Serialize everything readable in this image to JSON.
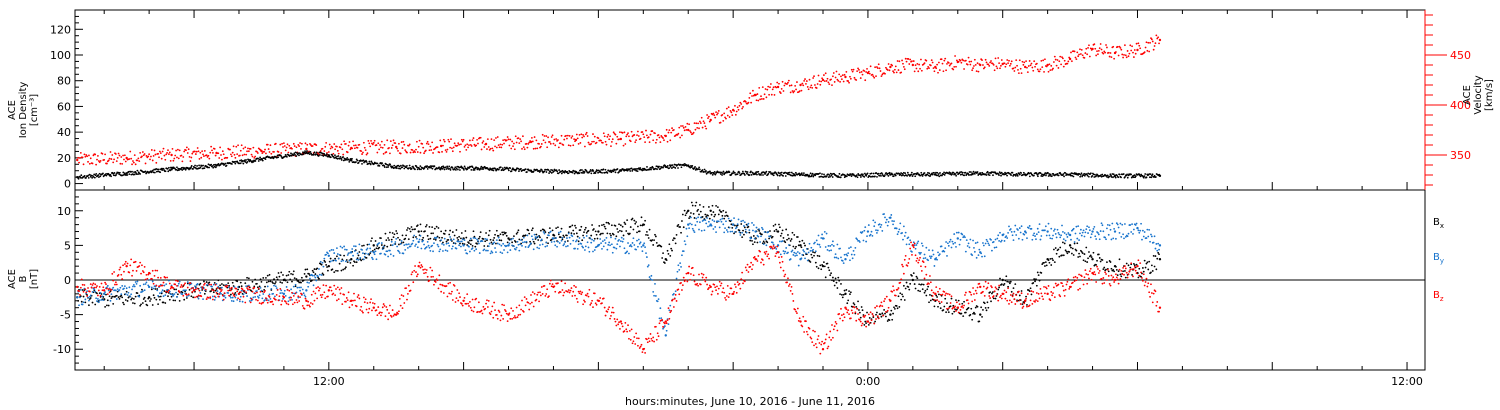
{
  "chart_data": [
    {
      "type": "scatter",
      "xlabel": "hours:minutes, June 10, 2016 - June 11, 2016",
      "x_ticks": [
        {
          "hour": 12,
          "label": "12:00"
        },
        {
          "hour": 24,
          "label": "0:00"
        },
        {
          "hour": 36,
          "label": "12:00"
        }
      ],
      "xlim": [
        6.35,
        36.4
      ],
      "panel_density": {
        "left_axis": {
          "label_lines": [
            "ACE",
            "Ion Density",
            "[cm⁻³]"
          ],
          "ylim": [
            -5,
            135
          ],
          "ticks": [
            0,
            20,
            40,
            60,
            80,
            100,
            120
          ]
        },
        "right_axis": {
          "label_lines": [
            "ACE",
            "Velocity",
            "[km/s]"
          ],
          "ylim": [
            315,
            495
          ],
          "ticks": [
            350,
            400,
            450
          ]
        },
        "series": [
          {
            "role": "density",
            "color": "#000000",
            "axis": "left",
            "x": [
              6.4,
              7.5,
              8.5,
              9.5,
              10.5,
              11.5,
              12.0,
              12.5,
              13.5,
              14.5,
              15.5,
              16.5,
              17.5,
              18.5,
              19.5,
              20.0,
              20.5,
              21.5,
              22.5,
              23.5,
              24.5,
              25.5,
              26.5,
              27.5,
              28.5,
              29.5,
              30.5
            ],
            "y": [
              5,
              8,
              11,
              14,
              19,
              24,
              22,
              18,
              13,
              12,
              12,
              10,
              9,
              10,
              13,
              14,
              8,
              8,
              7,
              6,
              7,
              7,
              8,
              7,
              7,
              6,
              6
            ]
          },
          {
            "role": "velocity",
            "color": "#ff0000",
            "axis": "right",
            "x": [
              6.4,
              7.5,
              8.5,
              9.5,
              10.5,
              11.5,
              12.5,
              13.5,
              14.5,
              15.5,
              16.5,
              17.5,
              18.5,
              19.5,
              20.0,
              20.5,
              21.0,
              21.5,
              22.0,
              22.5,
              23.0,
              23.5,
              24.0,
              24.5,
              25.0,
              25.5,
              26.0,
              26.5,
              27.0,
              27.5,
              28.0,
              28.5,
              29.0,
              29.5,
              30.0,
              30.5
            ],
            "y": [
              345,
              347,
              350,
              352,
              354,
              356,
              357,
              358,
              359,
              361,
              363,
              365,
              366,
              369,
              375,
              385,
              395,
              410,
              418,
              420,
              425,
              428,
              432,
              438,
              440,
              438,
              443,
              440,
              441,
              438,
              440,
              446,
              456,
              452,
              455,
              465
            ]
          }
        ]
      },
      "panel_field": {
        "left_axis": {
          "label_lines": [
            "ACE",
            "B",
            "[nT]"
          ],
          "ylim": [
            -13,
            13
          ],
          "ticks": [
            -10,
            -5,
            0,
            5,
            10
          ]
        },
        "legend": [
          {
            "label": "B",
            "sub": "x",
            "color": "#000000"
          },
          {
            "label": "B",
            "sub": "y",
            "color": "#1874cd"
          },
          {
            "label": "B",
            "sub": "z",
            "color": "#ff0000"
          }
        ],
        "series": [
          {
            "role": "Bx",
            "color": "#000000",
            "x": [
              6.4,
              7.0,
              8.0,
              9.0,
              10.0,
              11.0,
              11.5,
              12.0,
              12.5,
              13.0,
              14.0,
              15.0,
              16.0,
              17.0,
              18.0,
              19.0,
              19.5,
              20.0,
              20.5,
              21.0,
              21.5,
              22.0,
              22.5,
              23.0,
              23.5,
              24.0,
              24.5,
              25.0,
              25.5,
              26.0,
              26.5,
              27.0,
              27.5,
              28.0,
              28.5,
              29.0,
              29.5,
              30.0,
              30.5
            ],
            "y": [
              -2.5,
              -2.8,
              -2.5,
              -1.5,
              -1.0,
              0.0,
              0.5,
              2.0,
              3.0,
              5.0,
              7.0,
              6.0,
              6.0,
              6.5,
              7.0,
              8.0,
              3.0,
              10.0,
              10.0,
              8.0,
              6.0,
              7.0,
              5.0,
              2.0,
              -2.0,
              -6.0,
              -5.0,
              0.0,
              -3.0,
              -4.0,
              -5.0,
              0.0,
              -3.0,
              3.0,
              5.0,
              3.0,
              2.0,
              1.0,
              3.0
            ]
          },
          {
            "role": "By",
            "color": "#1874cd",
            "x": [
              6.4,
              7.0,
              8.0,
              9.0,
              10.0,
              11.0,
              11.5,
              12.0,
              12.5,
              13.0,
              14.0,
              15.0,
              16.0,
              17.0,
              18.0,
              19.0,
              19.5,
              20.0,
              20.5,
              21.0,
              21.5,
              22.0,
              22.5,
              23.0,
              23.5,
              24.0,
              24.5,
              25.0,
              25.5,
              26.0,
              26.5,
              27.0,
              27.5,
              28.0,
              28.5,
              29.0,
              29.5,
              30.0,
              30.5
            ],
            "y": [
              -2.5,
              -2.0,
              -1.0,
              -1.5,
              -2.0,
              -2.0,
              -1.5,
              3.5,
              4.0,
              4.0,
              5.5,
              5.0,
              5.0,
              6.0,
              5.0,
              5.0,
              -8.0,
              8.0,
              8.0,
              8.0,
              7.0,
              5.0,
              3.0,
              6.0,
              3.0,
              7.0,
              9.0,
              5.0,
              3.0,
              6.0,
              4.0,
              6.5,
              7.0,
              7.0,
              6.5,
              7.0,
              7.0,
              7.5,
              5.0
            ]
          },
          {
            "role": "Bz",
            "color": "#ff0000",
            "x": [
              6.4,
              7.0,
              7.5,
              8.0,
              8.5,
              9.0,
              10.0,
              11.0,
              11.5,
              12.0,
              12.5,
              13.0,
              13.5,
              14.0,
              15.0,
              16.0,
              17.0,
              18.0,
              18.5,
              19.0,
              19.5,
              20.0,
              20.5,
              21.0,
              21.5,
              22.0,
              22.5,
              23.0,
              23.5,
              24.0,
              24.5,
              25.0,
              25.5,
              26.0,
              26.5,
              27.0,
              27.5,
              28.0,
              28.5,
              29.0,
              29.5,
              30.0,
              30.5
            ],
            "y": [
              -1.0,
              -1.5,
              2.0,
              1.0,
              -1.0,
              -1.5,
              -2.0,
              -2.5,
              -3.0,
              -1.5,
              -3.0,
              -4.0,
              -5.0,
              2.0,
              -3.0,
              -5.0,
              -1.0,
              -3.0,
              -6.0,
              -10.0,
              -6.0,
              1.0,
              -1.0,
              -2.0,
              3.0,
              4.0,
              -6.0,
              -10.0,
              -4.0,
              -6.0,
              -3.0,
              5.0,
              -2.0,
              -4.0,
              -1.0,
              -2.0,
              -3.0,
              -2.0,
              -1.0,
              1.0,
              0.0,
              2.0,
              -4.0
            ]
          }
        ]
      }
    }
  ]
}
